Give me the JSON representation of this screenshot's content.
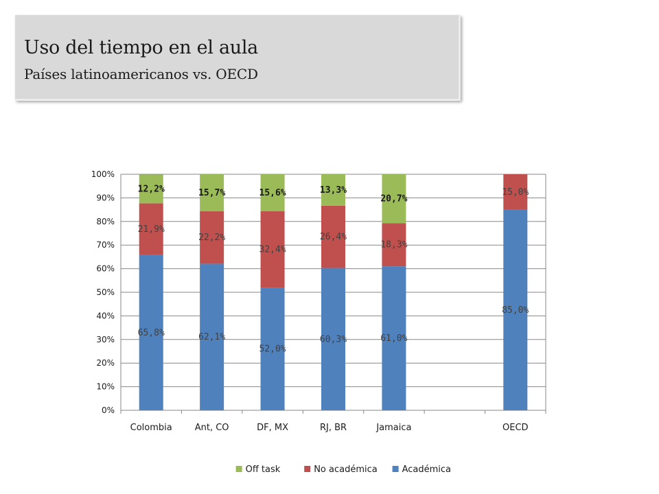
{
  "header": {
    "title": "Uso del tiempo en el aula",
    "subtitle": "Países latinoamericanos vs. OECD"
  },
  "chart_data": {
    "type": "bar",
    "stacked": true,
    "categories": [
      "Colombia",
      "Ant, CO",
      "DF, MX",
      "RJ, BR",
      "Jamaica",
      "",
      "OECD"
    ],
    "series": [
      {
        "name": "Académica",
        "color": "#4f81bd",
        "values": [
          65.8,
          62.1,
          52.0,
          60.3,
          61.0,
          null,
          85.0
        ],
        "labels": [
          "65,8%",
          "62,1%",
          "52,0%",
          "60,3%",
          "61,0%",
          "",
          "85,0%"
        ]
      },
      {
        "name": "No académica",
        "color": "#c0504d",
        "values": [
          21.9,
          22.2,
          32.4,
          26.4,
          18.3,
          null,
          15.0
        ],
        "labels": [
          "21,9%",
          "22,2%",
          "32,4%",
          "26,4%",
          "18,3%",
          "",
          "15,0%"
        ]
      },
      {
        "name": "Off task",
        "color": "#9bbb59",
        "values": [
          12.2,
          15.7,
          15.6,
          13.3,
          20.7,
          null,
          null
        ],
        "labels": [
          "12,2%",
          "15,7%",
          "15,6%",
          "13,3%",
          "20,7%",
          "",
          ""
        ]
      }
    ],
    "ylim": [
      0,
      100
    ],
    "yticks": [
      "0%",
      "10%",
      "20%",
      "30%",
      "40%",
      "50%",
      "60%",
      "70%",
      "80%",
      "90%",
      "100%"
    ],
    "grid": true,
    "legend": {
      "position": "bottom",
      "order": [
        "Off task",
        "No académica",
        "Académica"
      ]
    }
  }
}
